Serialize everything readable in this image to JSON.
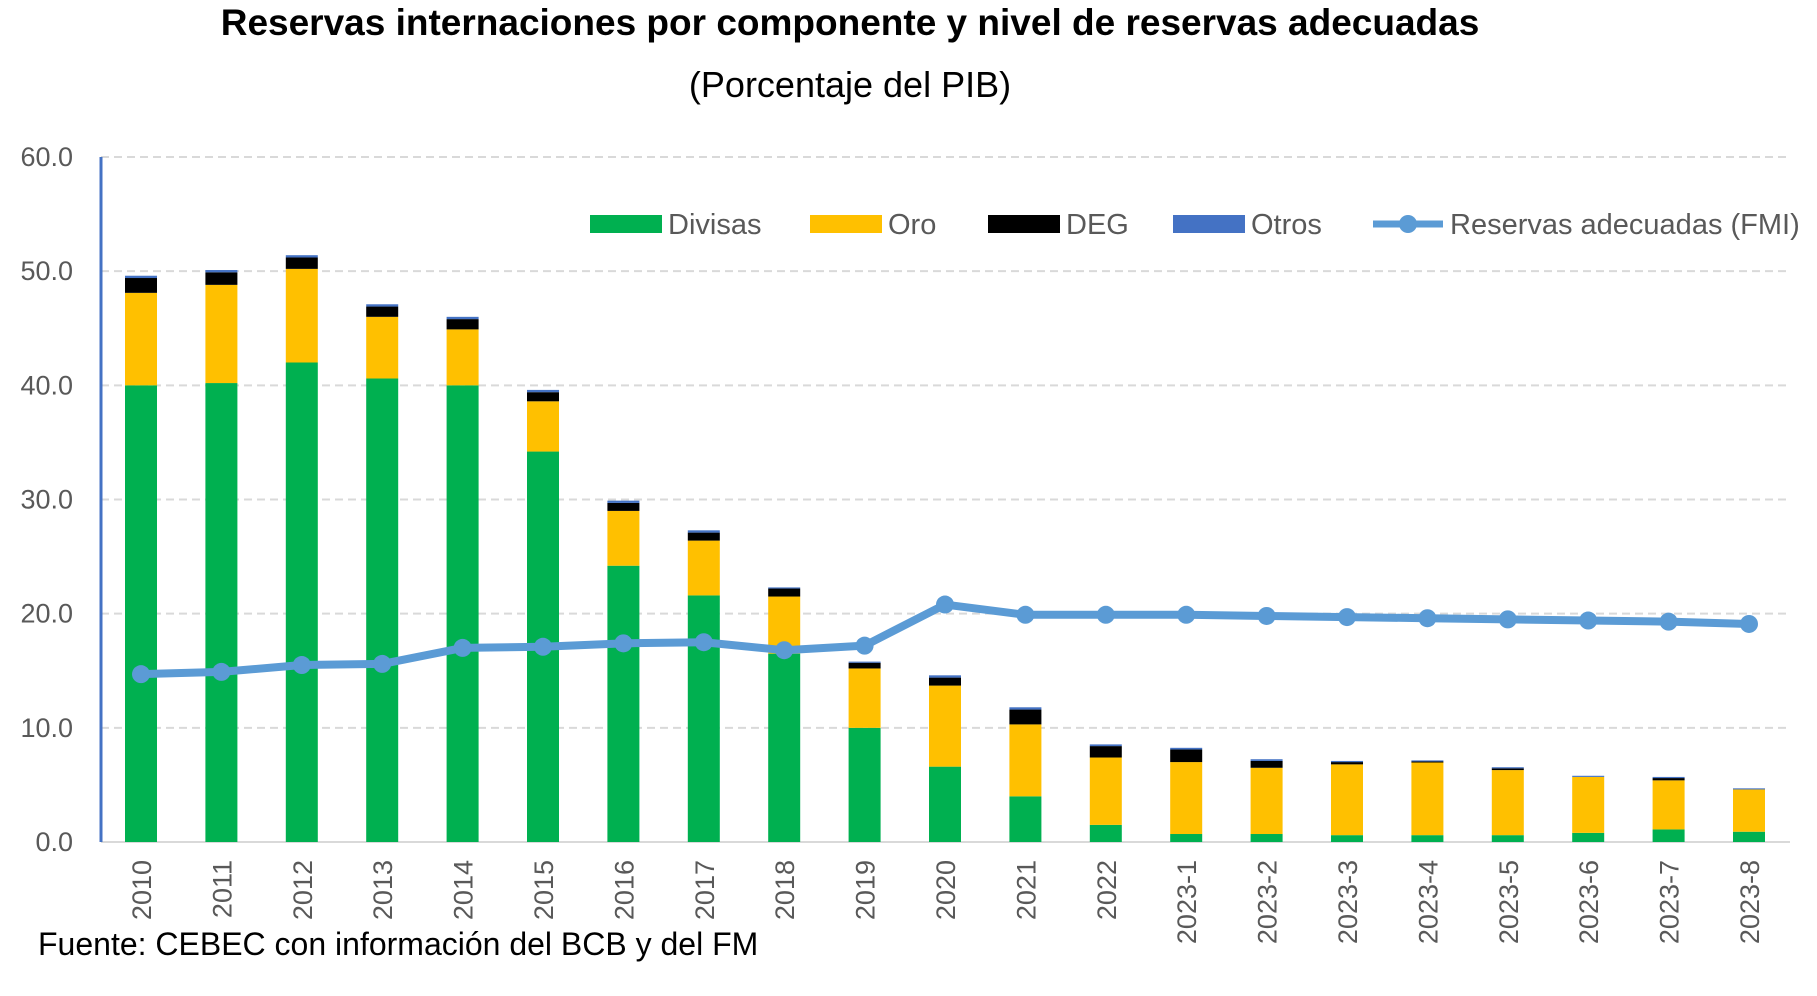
{
  "chart_data": {
    "type": "bar",
    "stacked": true,
    "title": "Reservas internaciones por componente y nivel de reservas adecuadas",
    "subtitle": "(Porcentaje del PIB)",
    "source": "Fuente: CEBEC con información del BCB y del FM",
    "ylim": [
      0,
      60
    ],
    "yticks": [
      "0.0",
      "10.0",
      "20.0",
      "30.0",
      "40.0",
      "50.0",
      "60.0"
    ],
    "grid": true,
    "legend_position": "top-right",
    "categories": [
      "2010",
      "2011",
      "2012",
      "2013",
      "2014",
      "2015",
      "2016",
      "2017",
      "2018",
      "2019",
      "2020",
      "2021",
      "2022",
      "2023-1",
      "2023-2",
      "2023-3",
      "2023-4",
      "2023-5",
      "2023-6",
      "2023-7",
      "2023-8"
    ],
    "series": [
      {
        "name": "Divisas",
        "type": "bar",
        "color": "#00B050",
        "values": [
          40.0,
          40.2,
          42.0,
          40.6,
          40.0,
          34.2,
          24.2,
          21.6,
          16.5,
          10.0,
          6.6,
          4.0,
          1.5,
          0.7,
          0.7,
          0.6,
          0.6,
          0.6,
          0.8,
          1.1,
          0.9
        ]
      },
      {
        "name": "Oro",
        "type": "bar",
        "color": "#FFC000",
        "values": [
          8.1,
          8.6,
          8.2,
          5.4,
          4.9,
          4.4,
          4.8,
          4.8,
          5.0,
          5.2,
          7.1,
          6.3,
          5.9,
          6.3,
          5.8,
          6.2,
          6.4,
          5.7,
          4.9,
          4.3,
          3.7
        ]
      },
      {
        "name": "DEG",
        "type": "bar",
        "color": "#000000",
        "values": [
          1.3,
          1.1,
          1.0,
          0.9,
          0.9,
          0.8,
          0.7,
          0.7,
          0.7,
          0.5,
          0.7,
          1.3,
          1.0,
          1.1,
          0.6,
          0.2,
          0.05,
          0.15,
          0.0,
          0.2,
          0.0
        ]
      },
      {
        "name": "Otros",
        "type": "bar",
        "color": "#4472C4",
        "values": [
          0.2,
          0.2,
          0.2,
          0.2,
          0.2,
          0.2,
          0.2,
          0.2,
          0.1,
          0.1,
          0.2,
          0.2,
          0.15,
          0.15,
          0.15,
          0.1,
          0.1,
          0.1,
          0.1,
          0.1,
          0.1
        ]
      },
      {
        "name": "Reservas adecuadas (FMI)",
        "type": "line",
        "color": "#5B9BD5",
        "values": [
          14.7,
          14.9,
          15.5,
          15.6,
          17.0,
          17.1,
          17.4,
          17.5,
          16.8,
          17.2,
          20.8,
          19.9,
          19.9,
          19.9,
          19.8,
          19.7,
          19.6,
          19.5,
          19.4,
          19.3,
          19.1
        ]
      }
    ]
  }
}
